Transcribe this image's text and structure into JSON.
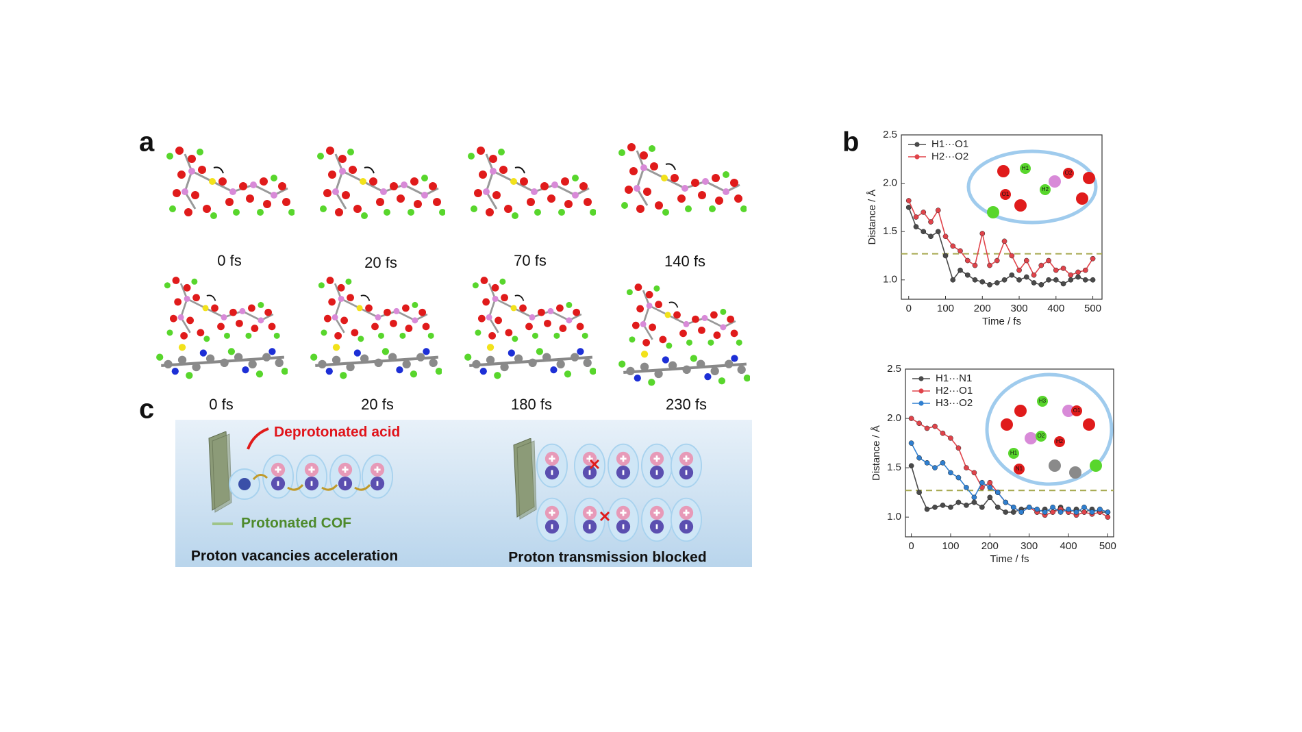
{
  "labels": {
    "a": "a",
    "b": "b",
    "c": "c"
  },
  "row1_times": [
    "0 fs",
    "20 fs",
    "70 fs",
    "140 fs"
  ],
  "row2_times": [
    "0 fs",
    "20 fs",
    "180 fs",
    "230 fs"
  ],
  "scheme": {
    "deprotonated": "Deprotonated acid",
    "protonated": "Protonated COF",
    "left_caption": "Proton vacancies acceleration",
    "right_caption": "Proton transmission blocked"
  },
  "inset_labels": [
    [
      "H1",
      "O1",
      "H2",
      "O2"
    ],
    [
      "H3",
      "H2",
      "O2",
      "O1",
      "H1",
      "N1"
    ]
  ],
  "chart_data": [
    {
      "type": "line",
      "xlabel": "Time / fs",
      "ylabel": "Distance / Å",
      "legend": "upper left",
      "threshold": 1.27,
      "xlim": [
        -20,
        525
      ],
      "xticks": [
        0,
        100,
        200,
        300,
        400,
        500
      ],
      "ylim": [
        0.8,
        2.5
      ],
      "yticks": [
        {
          "value": 1,
          "label": "1.0"
        },
        1.5,
        {
          "value": 2,
          "label": "2.0"
        },
        2.5
      ],
      "x": [
        0,
        20,
        40,
        60,
        80,
        100,
        120,
        140,
        160,
        180,
        200,
        220,
        240,
        260,
        280,
        300,
        320,
        340,
        360,
        380,
        400,
        420,
        440,
        460,
        480,
        500
      ],
      "series": [
        {
          "name": "H1···O1",
          "color": "#4a4a4a",
          "values": [
            1.75,
            1.55,
            1.5,
            1.45,
            1.5,
            1.25,
            1.0,
            1.1,
            1.05,
            1.0,
            0.98,
            0.95,
            0.97,
            1.0,
            1.05,
            1.0,
            1.03,
            0.97,
            0.95,
            1.0,
            1.0,
            0.96,
            1.0,
            1.03,
            1.0,
            1.0
          ]
        },
        {
          "name": "H2···O2",
          "color": "#e0434a",
          "values": [
            1.82,
            1.65,
            1.7,
            1.6,
            1.72,
            1.45,
            1.35,
            1.3,
            1.2,
            1.15,
            1.48,
            1.15,
            1.2,
            1.4,
            1.25,
            1.1,
            1.2,
            1.05,
            1.15,
            1.2,
            1.1,
            1.12,
            1.05,
            1.08,
            1.1,
            1.22
          ]
        }
      ]
    },
    {
      "type": "line",
      "xlabel": "Time / fs",
      "ylabel": "Distance / Å",
      "legend": "upper left",
      "threshold": 1.27,
      "xlim": [
        -15,
        515
      ],
      "xticks": [
        0,
        100,
        200,
        300,
        400,
        500
      ],
      "ylim": [
        0.8,
        2.5
      ],
      "yticks": [
        {
          "value": 1,
          "label": "1.0"
        },
        1.5,
        {
          "value": 2,
          "label": "2.0"
        },
        2.5
      ],
      "x": [
        0,
        20,
        40,
        60,
        80,
        100,
        120,
        140,
        160,
        180,
        200,
        220,
        240,
        260,
        280,
        300,
        320,
        340,
        360,
        380,
        400,
        420,
        440,
        460,
        480,
        500
      ],
      "series": [
        {
          "name": "H1···N1",
          "color": "#4a4a4a",
          "values": [
            1.52,
            1.25,
            1.08,
            1.1,
            1.12,
            1.1,
            1.15,
            1.12,
            1.15,
            1.1,
            1.2,
            1.1,
            1.05,
            1.05,
            1.08,
            1.1,
            1.05,
            1.08,
            1.05,
            1.1,
            1.05,
            1.08,
            1.05,
            1.08,
            1.05,
            1.05
          ]
        },
        {
          "name": "H2···O1",
          "color": "#e0434a",
          "values": [
            2.0,
            1.95,
            1.9,
            1.92,
            1.85,
            1.8,
            1.7,
            1.5,
            1.45,
            1.3,
            1.35,
            1.25,
            1.15,
            1.1,
            1.05,
            1.1,
            1.05,
            1.02,
            1.05,
            1.08,
            1.05,
            1.02,
            1.05,
            1.03,
            1.05,
            1.0
          ]
        },
        {
          "name": "H3···O2",
          "color": "#2f7fd0",
          "values": [
            1.75,
            1.6,
            1.55,
            1.5,
            1.55,
            1.45,
            1.4,
            1.3,
            1.2,
            1.35,
            1.3,
            1.25,
            1.15,
            1.1,
            1.05,
            1.1,
            1.08,
            1.05,
            1.1,
            1.05,
            1.08,
            1.05,
            1.1,
            1.05,
            1.08,
            1.05
          ]
        }
      ]
    }
  ]
}
